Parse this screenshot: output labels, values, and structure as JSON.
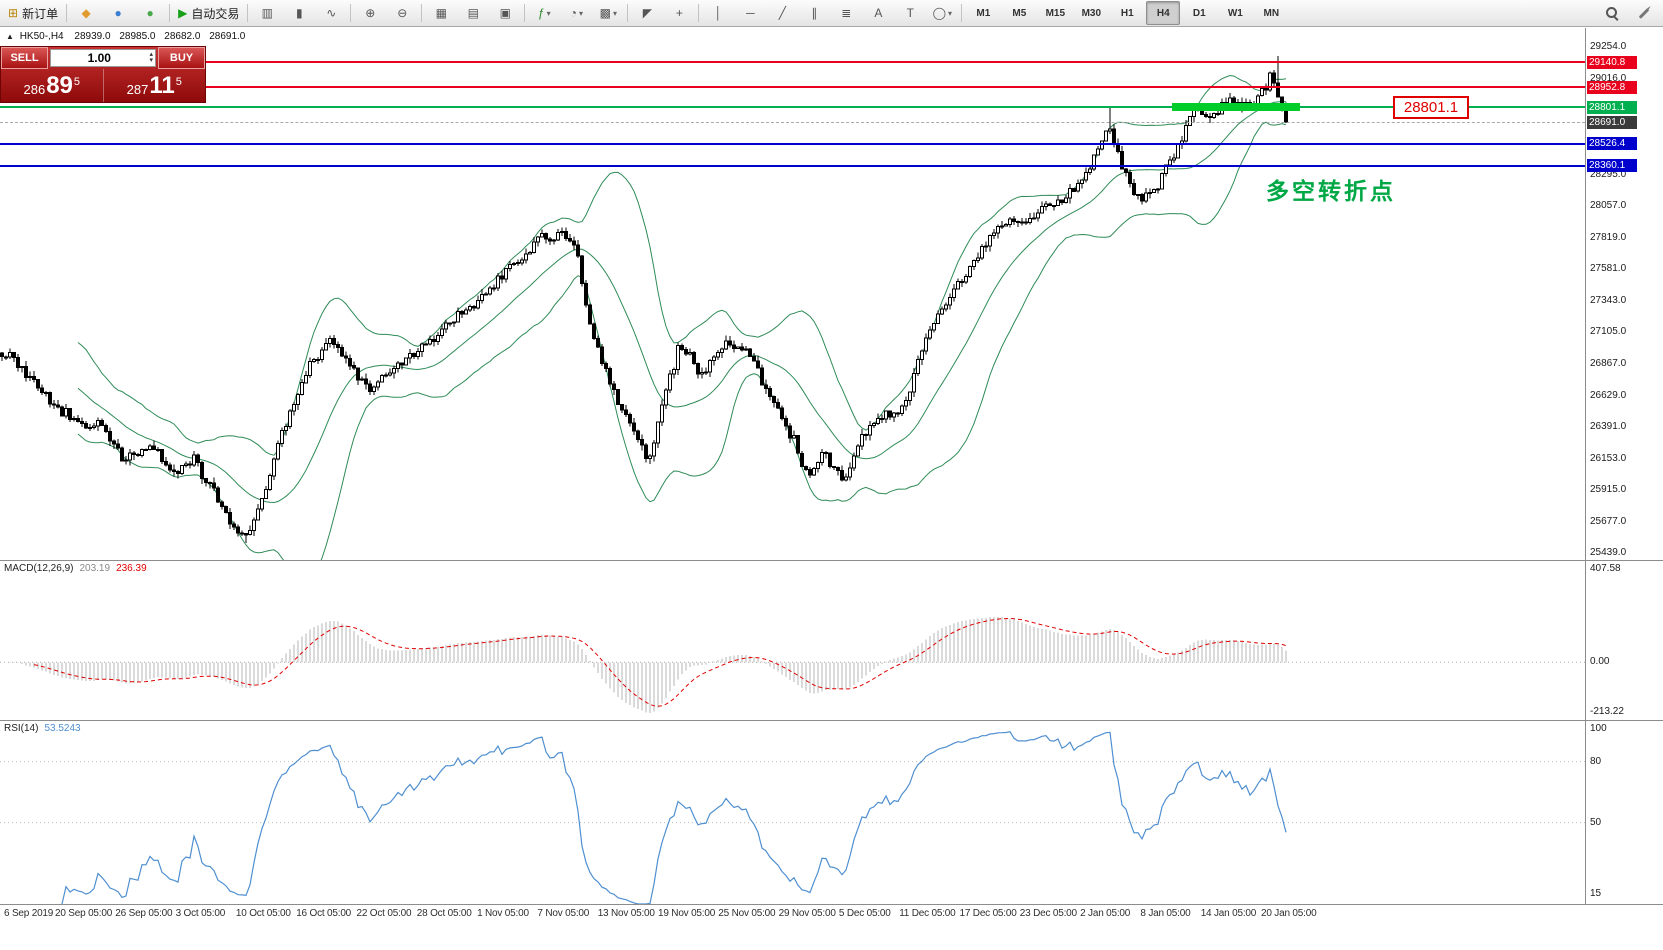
{
  "toolbar": {
    "buttons": [
      {
        "name": "new-order-button",
        "glyph": "⊞",
        "glyph_color": "#b8860b",
        "label": "新订单",
        "group_end": true
      },
      {
        "name": "metaeditor-button",
        "glyph": "◆",
        "glyph_color": "#e09a2e"
      },
      {
        "name": "market-button",
        "glyph": "●",
        "glyph_color": "#3b7fd4"
      },
      {
        "name": "signals-button",
        "glyph": "●",
        "glyph_color": "#4aa84a",
        "group_end": true
      },
      {
        "name": "autotrading-button",
        "glyph": "▶",
        "glyph_color": "#18a018",
        "label": "自动交易",
        "group_end": true
      },
      {
        "name": "bar-chart-button",
        "glyph": "▥"
      },
      {
        "name": "candlestick-chart-button",
        "glyph": "▮"
      },
      {
        "name": "line-chart-button",
        "glyph": "∿",
        "group_end": true
      },
      {
        "name": "zoom-in-button",
        "glyph": "⊕"
      },
      {
        "name": "zoom-out-button",
        "glyph": "⊖",
        "group_end": true
      },
      {
        "name": "tile-windows-button",
        "glyph": "▦"
      },
      {
        "name": "auto-arrange-button",
        "glyph": "▤"
      },
      {
        "name": "track-chart-button",
        "glyph": "▣",
        "group_end": true
      },
      {
        "name": "indicators-button",
        "glyph": "ƒ",
        "glyph_color": "#2e8b2e",
        "arrow": true
      },
      {
        "name": "periods-button",
        "glyph": "◔",
        "arrow": true
      },
      {
        "name": "templates-button",
        "glyph": "▩",
        "arrow": true,
        "group_end": true
      },
      {
        "name": "cursor-button",
        "glyph": "◤"
      },
      {
        "name": "crosshair-button",
        "glyph": "+",
        "group_end": true
      },
      {
        "name": "vertical-line-button",
        "glyph": "│"
      },
      {
        "name": "horizontal-line-button",
        "glyph": "─"
      },
      {
        "name": "trendline-button",
        "glyph": "╱"
      },
      {
        "name": "channel-button",
        "glyph": "∥"
      },
      {
        "name": "fibonacci-button",
        "glyph": "≣"
      },
      {
        "name": "text-button",
        "glyph": "A"
      },
      {
        "name": "label-button",
        "glyph": "T"
      },
      {
        "name": "shapes-button",
        "glyph": "◯",
        "arrow": true,
        "group_end": true
      }
    ],
    "timeframes": [
      "M1",
      "M5",
      "M15",
      "M30",
      "H1",
      "H4",
      "D1",
      "W1",
      "MN"
    ],
    "active_timeframe": "H4",
    "right_icons": [
      {
        "name": "search-icon"
      },
      {
        "name": "quick-edit-icon"
      }
    ]
  },
  "chart_header": {
    "marker": "▲",
    "symbol_period": "HK50-,H4",
    "open": "28939.0",
    "high": "28985.0",
    "low": "28682.0",
    "close": "28691.0"
  },
  "one_click": {
    "sell_label": "SELL",
    "buy_label": "BUY",
    "volume": "1.00",
    "sell_price": {
      "prefix": "286",
      "big": "89",
      "frac": "5",
      "full": "28689.5"
    },
    "buy_price": {
      "prefix": "287",
      "big": "11",
      "frac": "5",
      "full": "28711.5"
    }
  },
  "annotations": {
    "price_tag": "28801.1",
    "pivot_label": "多空转折点"
  },
  "price_axis": {
    "regular": [
      "29254.0",
      "29016.0",
      "28295.0",
      "28057.0",
      "27819.0",
      "27581.0",
      "27343.0",
      "27105.0",
      "26867.0",
      "26629.0",
      "26391.0",
      "26153.0",
      "25915.0",
      "25677.0",
      "25439.0"
    ],
    "special": [
      {
        "name": "resistance-1",
        "value": "29140.8",
        "bg": "#e8001c",
        "fg": "#ffffff"
      },
      {
        "name": "resistance-2",
        "value": "28952.8",
        "bg": "#e8001c",
        "fg": "#ffffff"
      },
      {
        "name": "pivot",
        "value": "28801.1",
        "bg": "#00b050",
        "fg": "#ffffff"
      },
      {
        "name": "current-bid",
        "value": "28691.0",
        "bg": "#3a3a3a",
        "fg": "#ffffff"
      },
      {
        "name": "support-1",
        "value": "28526.4",
        "bg": "#0000cd",
        "fg": "#ffffff"
      },
      {
        "name": "support-2",
        "value": "28360.1",
        "bg": "#0000cd",
        "fg": "#ffffff"
      }
    ]
  },
  "hlines": [
    {
      "name": "resistance-1",
      "price": 29140.8,
      "color": "#e8001c",
      "width": 2,
      "style": "solid"
    },
    {
      "name": "resistance-2",
      "price": 28952.8,
      "color": "#e8001c",
      "width": 2,
      "style": "solid"
    },
    {
      "name": "pivot",
      "price": 28801.1,
      "color": "#00b050",
      "width": 2,
      "style": "solid"
    },
    {
      "name": "current-bid",
      "price": 28691.0,
      "color": "#aaaaaa",
      "width": 1,
      "style": "dashed"
    },
    {
      "name": "support-1",
      "price": 28526.4,
      "color": "#0000cd",
      "width": 2,
      "style": "solid"
    },
    {
      "name": "support-2",
      "price": 28360.1,
      "color": "#0000cd",
      "width": 2,
      "style": "solid"
    }
  ],
  "chart_data": {
    "type": "candlestick",
    "symbol": "HK50-",
    "timeframe": "H4",
    "ohlc": {
      "open": 28939.0,
      "high": 28985.0,
      "low": 28682.0,
      "close": 28691.0
    },
    "y_axis": {
      "min": 25439,
      "max": 29254,
      "tick_step": 238
    },
    "x_labels": [
      "6 Sep 2019",
      "20 Sep 05:00",
      "26 Sep 05:00",
      "3 Oct 05:00",
      "10 Oct 05:00",
      "16 Oct 05:00",
      "22 Oct 05:00",
      "28 Oct 05:00",
      "1 Nov 05:00",
      "7 Nov 05:00",
      "13 Nov 05:00",
      "19 Nov 05:00",
      "25 Nov 05:00",
      "29 Nov 05:00",
      "5 Dec 05:00",
      "11 Dec 05:00",
      "17 Dec 05:00",
      "23 Dec 05:00",
      "2 Jan 05:00",
      "8 Jan 05:00",
      "14 Jan 05:00",
      "20 Jan 05:00"
    ],
    "candles_count": 322,
    "price_path_anchors": [
      [
        0,
        26950
      ],
      [
        0.02,
        26800
      ],
      [
        0.045,
        26500
      ],
      [
        0.075,
        26400
      ],
      [
        0.095,
        26150
      ],
      [
        0.115,
        26250
      ],
      [
        0.135,
        26050
      ],
      [
        0.15,
        26150
      ],
      [
        0.165,
        25900
      ],
      [
        0.18,
        25620
      ],
      [
        0.192,
        25560
      ],
      [
        0.205,
        25900
      ],
      [
        0.22,
        26400
      ],
      [
        0.24,
        26850
      ],
      [
        0.252,
        27050
      ],
      [
        0.268,
        26900
      ],
      [
        0.285,
        26650
      ],
      [
        0.3,
        26800
      ],
      [
        0.32,
        26950
      ],
      [
        0.345,
        27150
      ],
      [
        0.37,
        27350
      ],
      [
        0.395,
        27600
      ],
      [
        0.42,
        27800
      ],
      [
        0.437,
        27870
      ],
      [
        0.448,
        27700
      ],
      [
        0.458,
        27150
      ],
      [
        0.47,
        26800
      ],
      [
        0.49,
        26350
      ],
      [
        0.505,
        26150
      ],
      [
        0.517,
        26650
      ],
      [
        0.527,
        27000
      ],
      [
        0.545,
        26800
      ],
      [
        0.565,
        27050
      ],
      [
        0.585,
        26900
      ],
      [
        0.6,
        26550
      ],
      [
        0.617,
        26300
      ],
      [
        0.627,
        26000
      ],
      [
        0.64,
        26200
      ],
      [
        0.655,
        25980
      ],
      [
        0.67,
        26300
      ],
      [
        0.685,
        26500
      ],
      [
        0.7,
        26480
      ],
      [
        0.715,
        26950
      ],
      [
        0.735,
        27350
      ],
      [
        0.755,
        27600
      ],
      [
        0.775,
        27900
      ],
      [
        0.795,
        27950
      ],
      [
        0.815,
        28060
      ],
      [
        0.835,
        28160
      ],
      [
        0.85,
        28400
      ],
      [
        0.862,
        28700
      ],
      [
        0.872,
        28350
      ],
      [
        0.885,
        28100
      ],
      [
        0.9,
        28180
      ],
      [
        0.915,
        28500
      ],
      [
        0.93,
        28800
      ],
      [
        0.945,
        28760
      ],
      [
        0.96,
        28870
      ],
      [
        0.975,
        28800
      ],
      [
        0.988,
        29050
      ],
      [
        1,
        28691
      ]
    ],
    "overlays": {
      "bollinger_bands": {
        "period": 20,
        "deviation": 2,
        "color": "#2e8b57"
      }
    },
    "levels": {
      "resistance": [
        29140.8,
        28952.8
      ],
      "pivot": 28801.1,
      "support": [
        28526.4,
        28360.1
      ],
      "current_bid": 28691.0,
      "sell": 28689.5,
      "buy": 28711.5
    },
    "macd": {
      "label": "MACD(12,26,9)",
      "main_value": "203.19",
      "signal_value": "236.39",
      "axis_labels": [
        "407.58",
        "0.00",
        "-213.22"
      ],
      "params": [
        12,
        26,
        9
      ]
    },
    "rsi": {
      "label": "RSI(14)",
      "value": "53.5243",
      "axis_labels": [
        "100",
        "80",
        "50",
        "15"
      ],
      "period": 14
    }
  }
}
